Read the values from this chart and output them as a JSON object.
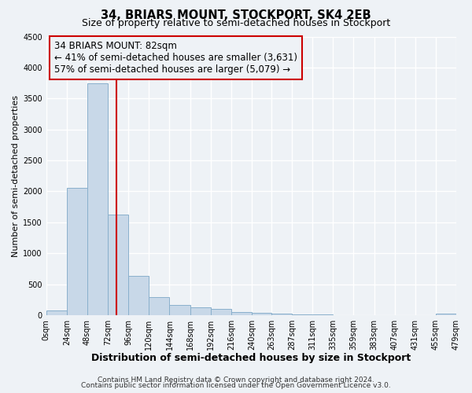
{
  "title": "34, BRIARS MOUNT, STOCKPORT, SK4 2EB",
  "subtitle": "Size of property relative to semi-detached houses in Stockport",
  "xlabel": "Distribution of semi-detached houses by size in Stockport",
  "ylabel": "Number of semi-detached properties",
  "bar_edges": [
    0,
    24,
    48,
    72,
    96,
    120,
    144,
    168,
    192,
    216,
    240,
    263,
    287,
    311,
    335,
    359,
    383,
    407,
    431,
    455,
    479
  ],
  "bar_heights": [
    80,
    2060,
    3750,
    1620,
    630,
    290,
    170,
    130,
    100,
    50,
    40,
    30,
    20,
    10,
    5,
    3,
    2,
    1,
    0,
    30
  ],
  "bar_color": "#c8d8e8",
  "bar_edgecolor": "#8ab0cc",
  "property_value": 82,
  "property_line_color": "#cc0000",
  "annotation_box_edgecolor": "#cc0000",
  "annotation_title": "34 BRIARS MOUNT: 82sqm",
  "annotation_line1": "← 41% of semi-detached houses are smaller (3,631)",
  "annotation_line2": "57% of semi-detached houses are larger (5,079) →",
  "ylim": [
    0,
    4500
  ],
  "yticks": [
    0,
    500,
    1000,
    1500,
    2000,
    2500,
    3000,
    3500,
    4000,
    4500
  ],
  "xtick_labels": [
    "0sqm",
    "24sqm",
    "48sqm",
    "72sqm",
    "96sqm",
    "120sqm",
    "144sqm",
    "168sqm",
    "192sqm",
    "216sqm",
    "240sqm",
    "263sqm",
    "287sqm",
    "311sqm",
    "335sqm",
    "359sqm",
    "383sqm",
    "407sqm",
    "431sqm",
    "455sqm",
    "479sqm"
  ],
  "footer_line1": "Contains HM Land Registry data © Crown copyright and database right 2024.",
  "footer_line2": "Contains public sector information licensed under the Open Government Licence v3.0.",
  "background_color": "#eef2f6",
  "grid_color": "#ffffff",
  "title_fontsize": 10.5,
  "subtitle_fontsize": 9,
  "xlabel_fontsize": 9,
  "ylabel_fontsize": 8,
  "tick_fontsize": 7,
  "annotation_fontsize": 8.5,
  "footer_fontsize": 6.5
}
